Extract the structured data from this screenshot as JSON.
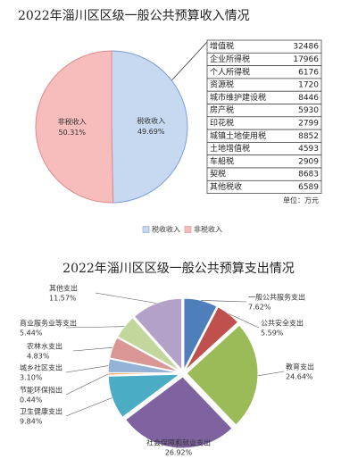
{
  "chart_data": [
    {
      "type": "pie",
      "title": "2022年淄川区区级一般公共预算收入情况",
      "categories": [
        "税收收入",
        "非税收入"
      ],
      "values": [
        49.69,
        50.31
      ],
      "value_labels": [
        "49.69%",
        "50.31%"
      ],
      "colors": [
        "#c6d9f1",
        "#f7bcbc"
      ],
      "label_position": "inside",
      "legend": "bottom",
      "table": {
        "rows": [
          [
            "增值税",
            32486
          ],
          [
            "企业所得税",
            17966
          ],
          [
            "个人所得税",
            6176
          ],
          [
            "资源税",
            1720
          ],
          [
            "城市维护建设税",
            8446
          ],
          [
            "房产税",
            5930
          ],
          [
            "印花税",
            2799
          ],
          [
            "城镇土地使用税",
            8852
          ],
          [
            "土地增值税",
            4593
          ],
          [
            "车船税",
            2909
          ],
          [
            "契税",
            8683
          ],
          [
            "其他税收",
            6589
          ]
        ],
        "note": "单位：万元"
      }
    },
    {
      "type": "pie",
      "title": "2022年淄川区区级一般公共预算支出情况",
      "categories": [
        "一般公共服务支出",
        "公共安全支出",
        "教育支出",
        "社会保障和就业支出",
        "卫生健康支出",
        "节能环保指出",
        "城乡社区支出",
        "农林水支出",
        "商业服务业等支出",
        "其他支出"
      ],
      "values": [
        7.62,
        5.59,
        24.64,
        26.92,
        9.84,
        0.44,
        3.1,
        4.83,
        5.44,
        11.57
      ],
      "value_labels": [
        "7.62%",
        "5.59%",
        "24.64%",
        "26.92%",
        "9.84%",
        "0.44%",
        "3.10%",
        "4.83%",
        "5.44%",
        "11.57%"
      ],
      "colors": [
        "#4f7fba",
        "#c0504d",
        "#9bbb59",
        "#7e63a0",
        "#4bacc6",
        "#f79646",
        "#95b3d7",
        "#da9694",
        "#c3d69b",
        "#b3a2c7"
      ],
      "label_position": "outside"
    }
  ]
}
